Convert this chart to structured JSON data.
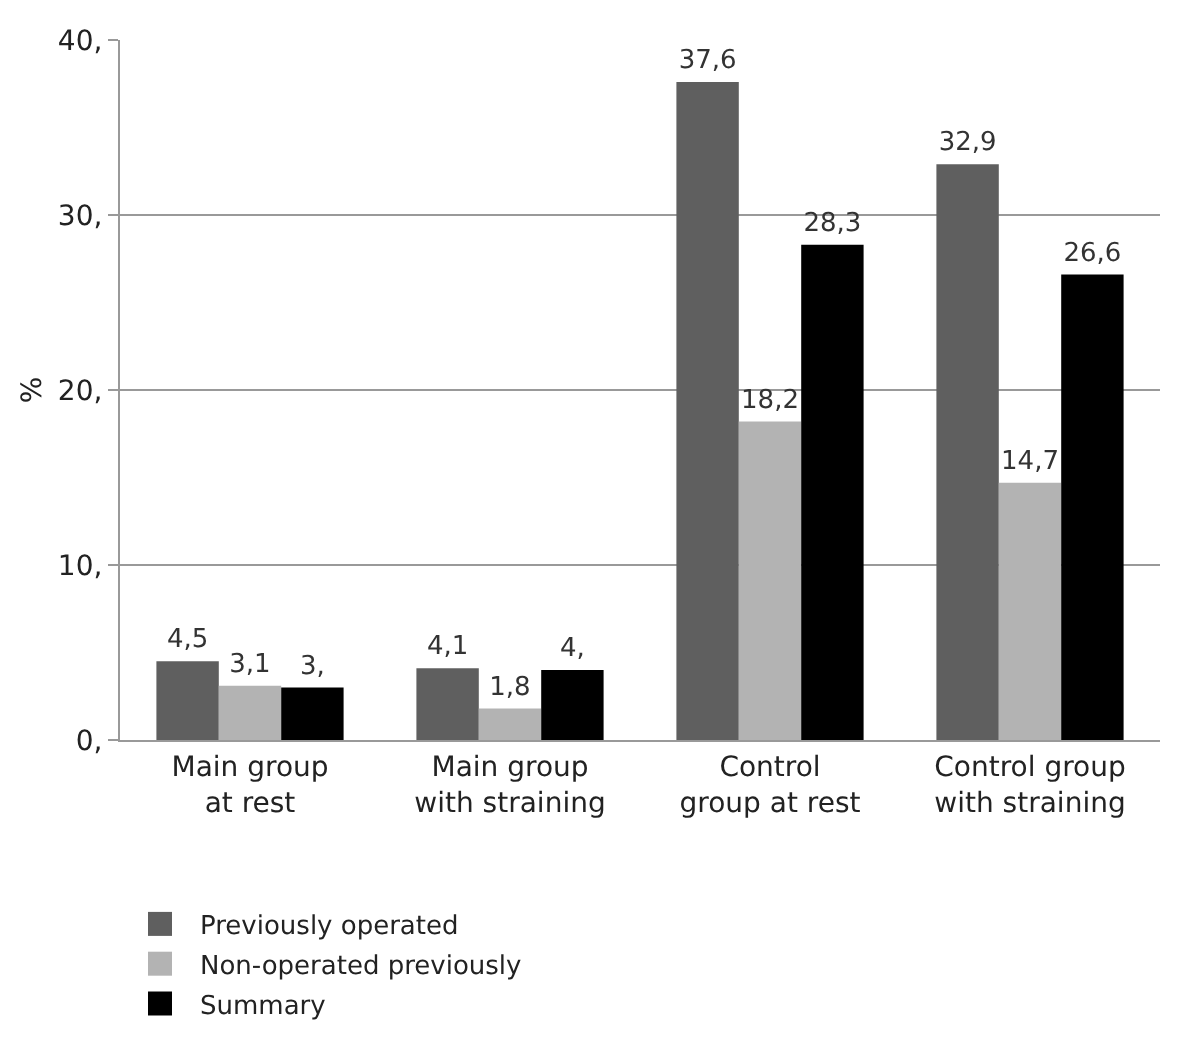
{
  "chart_data": {
    "type": "bar",
    "ylabel": "%",
    "categories": [
      "Main group at rest",
      "Main group with straining",
      "Control group at rest",
      "Control group with straining"
    ],
    "series": [
      {
        "name": "Previously operated",
        "color": "#5f5f5f",
        "values": [
          4.5,
          4.1,
          37.6,
          32.9
        ],
        "value_labels": [
          "4,5",
          "4,1",
          "37,6",
          "32,9"
        ]
      },
      {
        "name": "Non-operated previously",
        "color": "#b3b3b3",
        "values": [
          3.1,
          1.8,
          18.2,
          14.7
        ],
        "value_labels": [
          "3,1",
          "1,8",
          "18,2",
          "14,7"
        ]
      },
      {
        "name": "Summary",
        "color": "#000000",
        "values": [
          3.0,
          4.0,
          28.3,
          26.6
        ],
        "value_labels": [
          "3,",
          "4,",
          "28,3",
          "26,6"
        ]
      }
    ],
    "ylim": [
      0,
      40
    ],
    "yticks": [
      {
        "value": 0,
        "label": "0,"
      },
      {
        "value": 10,
        "label": "10,"
      },
      {
        "value": 20,
        "label": "20,"
      },
      {
        "value": 30,
        "label": "30,"
      },
      {
        "value": 40,
        "label": "40,"
      }
    ],
    "grid": "y",
    "legend": "bottom left"
  }
}
